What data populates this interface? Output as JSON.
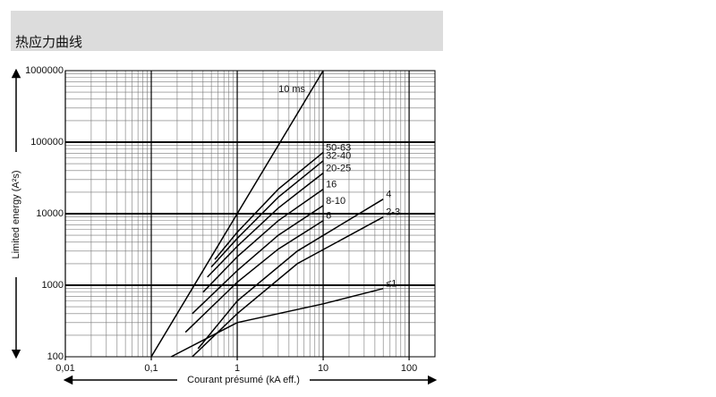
{
  "header": {
    "title": "热应力曲线"
  },
  "chart_data": {
    "type": "line",
    "y_label": "Limited energy (A²s)",
    "x_label": "Courant présumé (kA eff.)",
    "xscale": "log",
    "yscale": "log",
    "grid": true,
    "color": "#000000",
    "xlim": [
      0.01,
      200
    ],
    "ylim": [
      100,
      1000000
    ],
    "xticks": [
      {
        "value": 0.01,
        "label": "0,01"
      },
      {
        "value": 0.1,
        "label": "0,1"
      },
      1,
      10,
      100
    ],
    "yticks": [
      100,
      1000,
      10000,
      100000,
      1000000
    ],
    "series": [
      {
        "name": "10 ms",
        "color": "#000000",
        "x": [
          0.1,
          10
        ],
        "values": [
          100,
          1000000
        ]
      },
      {
        "name": "50-63",
        "color": "#000000",
        "x": [
          0.55,
          1,
          3,
          10
        ],
        "values": [
          2300,
          5500,
          22000,
          72000
        ]
      },
      {
        "name": "32-40",
        "color": "#000000",
        "x": [
          0.5,
          1,
          3,
          10
        ],
        "values": [
          1800,
          4500,
          17000,
          55000
        ]
      },
      {
        "name": "20-25",
        "color": "#000000",
        "x": [
          0.45,
          1,
          3,
          10
        ],
        "values": [
          1300,
          3500,
          12000,
          37000
        ]
      },
      {
        "name": "16",
        "color": "#000000",
        "x": [
          0.4,
          1,
          3,
          10
        ],
        "values": [
          800,
          2500,
          8000,
          22000
        ]
      },
      {
        "name": "8-10",
        "color": "#000000",
        "x": [
          0.3,
          1,
          3,
          10
        ],
        "values": [
          400,
          1600,
          5000,
          13000
        ]
      },
      {
        "name": "6",
        "color": "#000000",
        "x": [
          0.25,
          1,
          3,
          10
        ],
        "values": [
          220,
          1100,
          3200,
          8000
        ]
      },
      {
        "name": "4",
        "color": "#000000",
        "x": [
          0.35,
          1,
          5,
          50
        ],
        "values": [
          130,
          600,
          3000,
          16000
        ]
      },
      {
        "name": "2-3",
        "color": "#000000",
        "x": [
          0.3,
          1,
          5,
          50
        ],
        "values": [
          100,
          400,
          2000,
          9000
        ]
      },
      {
        "name": "≤1",
        "color": "#000000",
        "x": [
          0.17,
          1,
          10,
          50
        ],
        "values": [
          100,
          300,
          550,
          900
        ]
      }
    ]
  }
}
